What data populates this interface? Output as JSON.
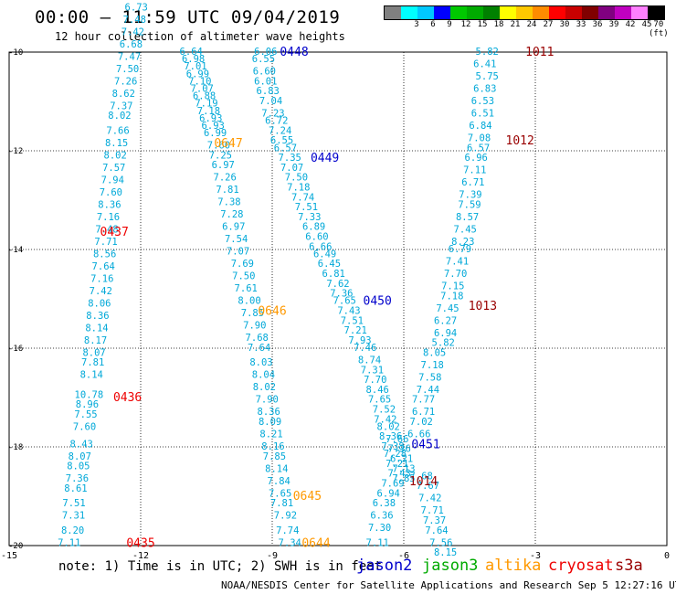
{
  "header": {
    "title": "00:00 – 11:59 UTC 09/04/2019",
    "subtitle": "12 hour collection of altimeter wave heights"
  },
  "colorbar": {
    "colors": [
      "#808080",
      "#00ffff",
      "#00c8ff",
      "#0000ff",
      "#00c800",
      "#00aa00",
      "#008000",
      "#ffff00",
      "#ffc800",
      "#ff8c00",
      "#ff0000",
      "#c80000",
      "#800000",
      "#800080",
      "#c000c0",
      "#ff80ff",
      "#000000"
    ],
    "labels": [
      "",
      "3",
      "6",
      "9",
      "12",
      "15",
      "18",
      "21",
      "24",
      "27",
      "30",
      "33",
      "36",
      "39",
      "42",
      "45",
      "70 (ft)"
    ]
  },
  "chart_data": {
    "type": "scatter",
    "title": "00:00 – 11:59 UTC 09/04/2019",
    "xlim": [
      -15,
      0
    ],
    "ylim": [
      -20,
      -10
    ],
    "x_ticks": [
      "-15",
      "-12",
      "-9",
      "-6",
      "-3",
      "0"
    ],
    "y_ticks": [
      "-10",
      "-12",
      "-14",
      "-16",
      "-18",
      "-20"
    ],
    "grid": true,
    "tracks": [
      {
        "id": "0435",
        "satellite": "cryosat",
        "pass_label": "0435",
        "label_pos": [
          -12.0,
          -19.95
        ],
        "pts": [
          [
            -13.63,
            -19.95,
            "7.11"
          ],
          [
            -13.55,
            -19.7,
            "8.20"
          ],
          [
            -13.53,
            -19.4,
            "7.31"
          ],
          [
            -13.52,
            -19.15,
            "7.51"
          ],
          [
            -13.48,
            -18.85,
            "8.61"
          ],
          [
            -13.45,
            -18.65,
            "7.36"
          ],
          [
            -13.42,
            -18.4,
            "8.05"
          ],
          [
            -13.39,
            -18.2,
            "8.07"
          ],
          [
            -13.35,
            -17.95,
            "8.43"
          ],
          [
            -13.28,
            -17.6,
            "7.60"
          ],
          [
            -13.25,
            -17.35,
            "7.55"
          ],
          [
            -13.22,
            -17.15,
            "8.96"
          ],
          [
            -13.18,
            -16.95,
            "10.78"
          ],
          [
            -13.12,
            -16.55,
            "8.14"
          ],
          [
            -13.09,
            -16.3,
            "7.81"
          ],
          [
            -13.06,
            -16.1,
            "8.07"
          ],
          [
            -13.03,
            -15.85,
            "8.17"
          ],
          [
            -13.0,
            -15.6,
            "8.14"
          ],
          [
            -12.98,
            -15.35,
            "8.36"
          ],
          [
            -12.94,
            -15.1,
            "8.06"
          ],
          [
            -12.91,
            -14.85,
            "7.42"
          ],
          [
            -12.88,
            -14.6,
            "7.16"
          ],
          [
            -12.85,
            -14.35,
            "7.64"
          ],
          [
            -12.82,
            -14.1,
            "8.56"
          ],
          [
            -12.79,
            -13.85,
            "7.71"
          ],
          [
            -12.77,
            -13.6,
            "7.48"
          ],
          [
            -12.74,
            -13.35,
            "7.16"
          ],
          [
            -12.71,
            -13.1,
            "8.36"
          ],
          [
            -12.68,
            -12.85,
            "7.60"
          ],
          [
            -12.64,
            -12.6,
            "7.94"
          ],
          [
            -12.61,
            -12.35,
            "7.57"
          ],
          [
            -12.58,
            -12.1,
            "8.02"
          ],
          [
            -12.55,
            -11.85,
            "8.15"
          ],
          [
            -12.52,
            -11.6,
            "7.66"
          ],
          [
            -12.48,
            -11.3,
            "8.02"
          ],
          [
            -12.44,
            -11.1,
            "7.37"
          ],
          [
            -12.39,
            -10.85,
            "8.62"
          ],
          [
            -12.34,
            -10.6,
            "7.26"
          ],
          [
            -12.3,
            -10.35,
            "7.50"
          ],
          [
            -12.26,
            -10.1,
            "7.47"
          ],
          [
            -12.22,
            -9.85,
            "6.68"
          ],
          [
            -12.18,
            -9.6,
            "7.42"
          ],
          [
            -12.14,
            -9.35,
            "7.48"
          ],
          [
            -12.1,
            -9.1,
            "6.73"
          ]
        ]
      },
      {
        "id": "0436",
        "satellite": "cryosat",
        "pass_label": "0436",
        "label_pos": [
          -12.3,
          -17.0
        ],
        "pts": []
      },
      {
        "id": "0437",
        "satellite": "cryosat",
        "pass_label": "0437",
        "label_pos": [
          -12.6,
          -13.65
        ],
        "pts": []
      },
      {
        "id": "0644",
        "satellite": "altika",
        "pass_label": "0644",
        "label_pos": [
          -8.0,
          -19.95
        ],
        "pts": [
          [
            -8.6,
            -19.95,
            "7.34"
          ],
          [
            -8.65,
            -19.7,
            "7.74"
          ],
          [
            -8.7,
            -19.4,
            "7.92"
          ],
          [
            -8.78,
            -19.15,
            "7.81"
          ],
          [
            -8.82,
            -18.95,
            "7.65"
          ],
          [
            -8.85,
            -18.7,
            "7.84"
          ],
          [
            -8.9,
            -18.45,
            "8.14"
          ],
          [
            -8.95,
            -18.2,
            "7.85"
          ],
          [
            -8.98,
            -18.0,
            "8.16"
          ],
          [
            -9.02,
            -17.75,
            "8.21"
          ],
          [
            -9.05,
            -17.5,
            "8.09"
          ],
          [
            -9.08,
            -17.3,
            "8.36"
          ],
          [
            -9.12,
            -17.05,
            "7.90"
          ],
          [
            -9.18,
            -16.8,
            "8.02"
          ],
          [
            -9.2,
            -16.55,
            "8.04"
          ],
          [
            -9.25,
            -16.3,
            "8.03"
          ],
          [
            -9.3,
            -16.0,
            "7.64"
          ],
          [
            -9.35,
            -15.8,
            "7.68"
          ],
          [
            -9.4,
            -15.55,
            "7.90"
          ],
          [
            -9.45,
            -15.3,
            "7.85"
          ],
          [
            -9.52,
            -15.05,
            "8.00"
          ],
          [
            -9.6,
            -14.8,
            "7.61"
          ],
          [
            -9.65,
            -14.55,
            "7.50"
          ],
          [
            -9.68,
            -14.3,
            "7.69"
          ],
          [
            -9.78,
            -14.05,
            "7.07"
          ],
          [
            -9.82,
            -13.8,
            "7.54"
          ],
          [
            -9.88,
            -13.55,
            "6.97"
          ],
          [
            -9.92,
            -13.3,
            "7.28"
          ],
          [
            -9.98,
            -13.05,
            "7.38"
          ],
          [
            -10.02,
            -12.8,
            "7.81"
          ],
          [
            -10.08,
            -12.55,
            "7.26"
          ],
          [
            -10.12,
            -12.3,
            "6.97"
          ],
          [
            -10.18,
            -12.1,
            "7.25"
          ],
          [
            -10.22,
            -11.9,
            "7.60"
          ],
          [
            -10.3,
            -11.65,
            "6.99"
          ],
          [
            -10.35,
            -11.5,
            "6.93"
          ],
          [
            -10.4,
            -11.35,
            "6.93"
          ],
          [
            -10.45,
            -11.2,
            "7.18"
          ],
          [
            -10.5,
            -11.05,
            "7.19"
          ],
          [
            -10.55,
            -10.9,
            "6.88"
          ],
          [
            -10.6,
            -10.75,
            "7.07"
          ],
          [
            -10.65,
            -10.6,
            "7.10"
          ],
          [
            -10.7,
            -10.45,
            "6.99"
          ],
          [
            -10.75,
            -10.3,
            "7.01"
          ],
          [
            -10.8,
            -10.15,
            "6.98"
          ],
          [
            -10.85,
            -10.0,
            "6.64"
          ]
        ]
      },
      {
        "id": "0645",
        "satellite": "altika",
        "pass_label": "0645",
        "label_pos": [
          -8.2,
          -19.0
        ],
        "pts": []
      },
      {
        "id": "0646",
        "satellite": "altika",
        "pass_label": "0646",
        "label_pos": [
          -9.0,
          -15.25
        ],
        "pts": []
      },
      {
        "id": "0647",
        "satellite": "altika",
        "pass_label": "0647",
        "label_pos": [
          -10.0,
          -11.85
        ],
        "pts": []
      },
      {
        "id": "0448",
        "satellite": "jason2",
        "pass_label": "0448",
        "label_pos": [
          -8.5,
          -10.0
        ],
        "pts": [
          [
            -9.15,
            -10.0,
            "6.06"
          ],
          [
            -9.2,
            -10.15,
            "6.55"
          ],
          [
            -9.18,
            -10.4,
            "6.60"
          ],
          [
            -9.15,
            -10.6,
            "6.01"
          ],
          [
            -9.1,
            -10.8,
            "6.83"
          ],
          [
            -9.03,
            -11.0,
            "7.04"
          ],
          [
            -8.98,
            -11.25,
            "7.23"
          ],
          [
            -8.9,
            -11.4,
            "6.72"
          ],
          [
            -8.82,
            -11.6,
            "7.24"
          ],
          [
            -8.78,
            -11.8,
            "6.55"
          ],
          [
            -8.7,
            -11.95,
            "6.57"
          ],
          [
            -8.6,
            -12.15,
            "7.35"
          ],
          [
            -8.55,
            -12.35,
            "7.07"
          ],
          [
            -8.45,
            -12.55,
            "7.50"
          ],
          [
            -8.4,
            -12.75,
            "7.18"
          ],
          [
            -8.3,
            -12.95,
            "7.74"
          ],
          [
            -8.22,
            -13.15,
            "7.51"
          ],
          [
            -8.15,
            -13.35,
            "7.33"
          ],
          [
            -8.05,
            -13.55,
            "6.89"
          ],
          [
            -7.98,
            -13.75,
            "6.60"
          ],
          [
            -7.9,
            -13.95,
            "6.66"
          ],
          [
            -7.8,
            -14.1,
            "6.49"
          ],
          [
            -7.7,
            -14.3,
            "6.45"
          ],
          [
            -7.6,
            -14.5,
            "6.81"
          ],
          [
            -7.5,
            -14.7,
            "7.62"
          ],
          [
            -7.42,
            -14.9,
            "7.36"
          ],
          [
            -7.35,
            -15.05,
            "7.65"
          ],
          [
            -7.25,
            -15.25,
            "7.43"
          ],
          [
            -7.18,
            -15.45,
            "7.51"
          ],
          [
            -7.1,
            -15.65,
            "7.21"
          ],
          [
            -7.0,
            -15.85,
            "7.93"
          ],
          [
            -6.88,
            -16.0,
            "7.46"
          ],
          [
            -6.78,
            -16.25,
            "8.74"
          ],
          [
            -6.72,
            -16.45,
            "7.31"
          ],
          [
            -6.65,
            -16.65,
            "7.70"
          ],
          [
            -6.6,
            -16.85,
            "8.46"
          ],
          [
            -6.55,
            -17.05,
            "7.65"
          ],
          [
            -6.45,
            -17.25,
            "7.52"
          ],
          [
            -6.42,
            -17.45,
            "7.42"
          ],
          [
            -6.35,
            -17.6,
            "8.02"
          ],
          [
            -6.3,
            -17.8,
            "8.36"
          ],
          [
            -6.25,
            -18.0,
            "7.38"
          ],
          [
            -6.2,
            -18.15,
            "7.28"
          ],
          [
            -6.15,
            -18.35,
            "7.21"
          ],
          [
            -6.1,
            -18.55,
            "7.43"
          ]
        ]
      },
      {
        "id": "0449",
        "satellite": "jason2",
        "pass_label": "0449",
        "label_pos": [
          -7.8,
          -12.15
        ],
        "pts": []
      },
      {
        "id": "0450",
        "satellite": "jason2",
        "pass_label": "0450",
        "label_pos": [
          -6.6,
          -15.05
        ],
        "pts": []
      },
      {
        "id": "0451",
        "satellite": "jason2",
        "pass_label": "0451",
        "label_pos": [
          -5.5,
          -17.95
        ],
        "pts": [
          [
            -6.15,
            -17.85,
            "7.66"
          ],
          [
            -6.1,
            -18.05,
            "7.36"
          ],
          [
            -6.05,
            -18.25,
            "6.21"
          ],
          [
            -6.0,
            -18.45,
            "7.13"
          ],
          [
            -6.0,
            -18.65,
            "7.85"
          ],
          [
            -6.25,
            -18.75,
            "7.69"
          ],
          [
            -6.35,
            -18.95,
            "6.94"
          ],
          [
            -6.45,
            -19.15,
            "6.38"
          ],
          [
            -6.5,
            -19.4,
            "6.36"
          ],
          [
            -6.55,
            -19.65,
            "7.30"
          ],
          [
            -6.6,
            -19.95,
            "7.11"
          ]
        ]
      },
      {
        "id": "1011",
        "satellite": "s3a",
        "pass_label": "1011",
        "label_pos": [
          -2.9,
          -10.0
        ],
        "pts": [
          [
            -4.1,
            -10.0,
            "5.82"
          ],
          [
            -4.15,
            -10.25,
            "6.41"
          ],
          [
            -4.1,
            -10.5,
            "5.75"
          ],
          [
            -4.15,
            -10.75,
            "6.83"
          ],
          [
            -4.2,
            -11.0,
            "6.53"
          ],
          [
            -4.2,
            -11.25,
            "6.51"
          ],
          [
            -4.25,
            -11.5,
            "6.84"
          ],
          [
            -4.28,
            -11.75,
            "7.08"
          ],
          [
            -4.3,
            -11.95,
            "6.57"
          ],
          [
            -4.35,
            -12.15,
            "6.96"
          ],
          [
            -4.38,
            -12.4,
            "7.11"
          ],
          [
            -4.42,
            -12.65,
            "6.71"
          ],
          [
            -4.48,
            -12.9,
            "7.39"
          ],
          [
            -4.5,
            -13.1,
            "7.59"
          ],
          [
            -4.55,
            -13.35,
            "8.57"
          ],
          [
            -4.6,
            -13.6,
            "7.45"
          ],
          [
            -4.65,
            -13.85,
            "8.23"
          ],
          [
            -4.72,
            -14.0,
            "6.79"
          ],
          [
            -4.78,
            -14.25,
            "7.41"
          ],
          [
            -4.82,
            -14.5,
            "7.70"
          ],
          [
            -4.88,
            -14.75,
            "7.15"
          ],
          [
            -4.9,
            -14.95,
            "7.18"
          ],
          [
            -5.0,
            -15.2,
            "7.45"
          ],
          [
            -5.05,
            -15.45,
            "6.27"
          ],
          [
            -5.05,
            -15.7,
            "6.94"
          ],
          [
            -5.1,
            -15.9,
            "5.82"
          ],
          [
            -5.3,
            -16.1,
            "8.05"
          ],
          [
            -5.35,
            -16.35,
            "7.18"
          ],
          [
            -5.4,
            -16.6,
            "7.58"
          ],
          [
            -5.45,
            -16.85,
            "7.44"
          ],
          [
            -5.55,
            -17.05,
            "7.77"
          ],
          [
            -5.55,
            -17.3,
            "6.71"
          ],
          [
            -5.6,
            -17.5,
            "7.02"
          ],
          [
            -5.65,
            -17.75,
            "6.66"
          ]
        ]
      },
      {
        "id": "1012",
        "satellite": "s3a",
        "pass_label": "1012",
        "label_pos": [
          -3.35,
          -11.8
        ],
        "pts": []
      },
      {
        "id": "1013",
        "satellite": "s3a",
        "pass_label": "1013",
        "label_pos": [
          -4.2,
          -15.15
        ],
        "pts": []
      },
      {
        "id": "1014",
        "satellite": "s3a",
        "pass_label": "1014",
        "label_pos": [
          -5.55,
          -18.7
        ],
        "pts": [
          [
            -5.6,
            -18.6,
            "7.68"
          ],
          [
            -5.45,
            -18.8,
            "7.67"
          ],
          [
            -5.4,
            -19.05,
            "7.42"
          ],
          [
            -5.35,
            -19.3,
            "7.71"
          ],
          [
            -5.3,
            -19.5,
            "7.37"
          ],
          [
            -5.25,
            -19.7,
            "7.64"
          ],
          [
            -5.15,
            -19.95,
            "7.56"
          ],
          [
            -5.05,
            -20.15,
            "8.15"
          ]
        ]
      }
    ]
  },
  "note": "note: 1) Time is in UTC; 2) SWH is in feet",
  "legend": {
    "jason2": "jason2",
    "jason3": "jason3",
    "altika": "altika",
    "cryosat": "cryosat",
    "s3a": "s3a"
  },
  "sat_colors": {
    "jason2": "#0000cc",
    "jason3": "#00aa00",
    "altika": "#ff9900",
    "cryosat": "#ee0000",
    "s3a": "#990000"
  },
  "footer": "NOAA/NESDIS Center for Satellite Applications and Research     Sep  5 12:27:16 UTC 2019"
}
